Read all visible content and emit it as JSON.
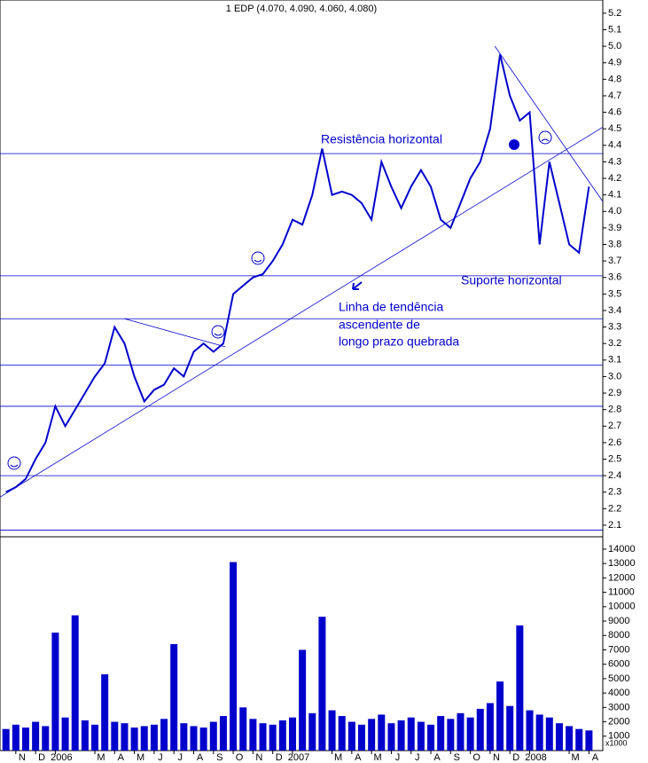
{
  "chart_data": [
    {
      "type": "line",
      "title": "1 EDP (4.070, 4.090, 4.060, 4.080)",
      "color": "#0000cc",
      "x": [
        -0.5,
        0,
        0.5,
        1,
        1.5,
        2,
        2.5,
        3,
        3.5,
        4,
        4.5,
        5,
        5.5,
        6,
        6.5,
        7,
        7.5,
        8,
        8.5,
        9,
        9.5,
        10,
        10.5,
        11,
        11.5,
        12,
        12.5,
        13,
        13.5,
        14,
        14.5,
        15,
        15.5,
        16,
        16.5,
        17,
        17.5,
        18,
        18.5,
        19,
        19.5,
        20,
        20.5,
        21,
        21.5,
        22,
        22.5,
        23,
        23.5,
        24,
        24.5,
        25,
        25.5,
        26,
        26.5,
        27,
        27.5,
        28,
        28.5,
        29
      ],
      "series": [
        {
          "name": "EDP",
          "color": "#0000cc",
          "values": [
            2.3,
            2.33,
            2.38,
            2.5,
            2.6,
            2.82,
            2.7,
            2.8,
            2.9,
            3.0,
            3.08,
            3.3,
            3.2,
            3.0,
            2.85,
            2.92,
            2.95,
            3.05,
            3.0,
            3.15,
            3.2,
            3.15,
            3.2,
            3.5,
            3.55,
            3.6,
            3.62,
            3.7,
            3.8,
            3.95,
            3.92,
            4.1,
            4.38,
            4.1,
            4.12,
            4.1,
            4.05,
            3.95,
            4.3,
            4.15,
            4.02,
            4.15,
            4.25,
            4.15,
            3.95,
            3.9,
            4.05,
            4.2,
            4.3,
            4.5,
            4.95,
            4.7,
            4.55,
            4.6,
            3.8,
            4.3,
            4.05,
            3.8,
            3.75,
            4.15
          ]
        }
      ],
      "xlim": [
        -0.8,
        29.7
      ],
      "ylim": [
        2.03,
        5.28
      ],
      "yticks": [
        2.1,
        2.2,
        2.3,
        2.4,
        2.5,
        2.6,
        2.7,
        2.8,
        2.9,
        {
          "value": 3,
          "label": "3.0"
        },
        3.1,
        3.2,
        3.3,
        3.4,
        3.5,
        3.6,
        3.7,
        3.8,
        3.9,
        {
          "value": 4,
          "label": "4.0"
        },
        4.1,
        4.2,
        4.3,
        4.4,
        4.5,
        4.6,
        4.7,
        4.8,
        4.9,
        {
          "value": 5,
          "label": "5.0"
        },
        5.1,
        5.2
      ],
      "levels": [
        4.35,
        3.61,
        3.35,
        3.07,
        2.82,
        2.4,
        2.07
      ],
      "trendlines": [
        [
          -0.8,
          2.27,
          29.7,
          4.51
        ],
        [
          24.24,
          5.0,
          29.7,
          4.06
        ],
        [
          5.5,
          3.35,
          10.6,
          3.18
        ]
      ],
      "annotations": [
        "Resistência horizontal",
        "Suporte horizontal",
        "Linha de tendência",
        "ascendente de",
        "longo prazo quebrada"
      ]
    },
    {
      "type": "bar",
      "color": "#0000cc",
      "unit_label": "x1000",
      "x": [
        -0.5,
        0,
        0.5,
        1,
        1.5,
        2,
        2.5,
        3,
        3.5,
        4,
        4.5,
        5,
        5.5,
        6,
        6.5,
        7,
        7.5,
        8,
        8.5,
        9,
        9.5,
        10,
        10.5,
        11,
        11.5,
        12,
        12.5,
        13,
        13.5,
        14,
        14.5,
        15,
        15.5,
        16,
        16.5,
        17,
        17.5,
        18,
        18.5,
        19,
        19.5,
        20,
        20.5,
        21,
        21.5,
        22,
        22.5,
        23,
        23.5,
        24,
        24.5,
        25,
        25.5,
        26,
        26.5,
        27,
        27.5,
        28,
        28.5,
        29
      ],
      "values": [
        1500,
        1800,
        1600,
        2000,
        1700,
        8200,
        2300,
        9400,
        2100,
        1800,
        5300,
        2000,
        1900,
        1600,
        1700,
        1800,
        2200,
        7400,
        1900,
        1700,
        1600,
        2000,
        2400,
        13100,
        3000,
        2200,
        1900,
        1800,
        2100,
        2300,
        7000,
        2600,
        9300,
        2800,
        2400,
        2000,
        1800,
        2200,
        2500,
        1900,
        2100,
        2300,
        2000,
        1800,
        2400,
        2200,
        2600,
        2300,
        2900,
        3300,
        4800,
        3100,
        8700,
        2800,
        2500,
        2300,
        1900,
        1700,
        1500,
        1400
      ],
      "xlim": [
        -0.8,
        29.7
      ],
      "ylim": [
        0,
        14860
      ],
      "yticks": [
        1000,
        2000,
        3000,
        4000,
        5000,
        6000,
        7000,
        8000,
        9000,
        10000,
        11000,
        12000,
        13000,
        14000
      ],
      "xticks": [
        {
          "value": 0,
          "label": "N"
        },
        {
          "value": 1,
          "label": "D"
        },
        {
          "value": 2,
          "label": "2006"
        },
        {
          "value": 4,
          "label": "M"
        },
        {
          "value": 5,
          "label": "A"
        },
        {
          "value": 6,
          "label": "M"
        },
        {
          "value": 7,
          "label": "J"
        },
        {
          "value": 8,
          "label": "J"
        },
        {
          "value": 9,
          "label": "A"
        },
        {
          "value": 10,
          "label": "S"
        },
        {
          "value": 11,
          "label": "O"
        },
        {
          "value": 12,
          "label": "N"
        },
        {
          "value": 13,
          "label": "D"
        },
        {
          "value": 14,
          "label": "2007"
        },
        {
          "value": 16,
          "label": "M"
        },
        {
          "value": 17,
          "label": "A"
        },
        {
          "value": 18,
          "label": "M"
        },
        {
          "value": 19,
          "label": "J"
        },
        {
          "value": 20,
          "label": "J"
        },
        {
          "value": 21,
          "label": "A"
        },
        {
          "value": 22,
          "label": "S"
        },
        {
          "value": 23,
          "label": "O"
        },
        {
          "value": 24,
          "label": "N"
        },
        {
          "value": 25,
          "label": "D"
        },
        {
          "value": 26,
          "label": "2008"
        },
        {
          "value": 28,
          "label": "M"
        },
        {
          "value": 29,
          "label": "A"
        }
      ]
    }
  ]
}
